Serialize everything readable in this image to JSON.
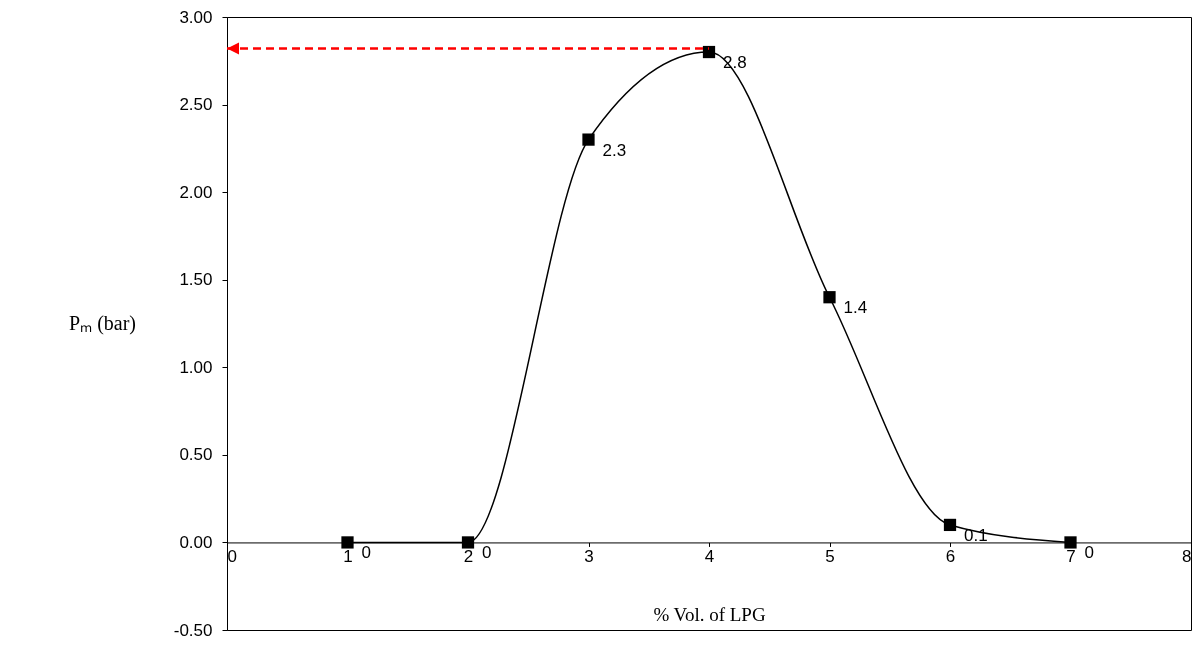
{
  "chart_data": {
    "type": "line",
    "xlabel": "% Vol. of LPG",
    "ylabel": "Pₘ (bar)",
    "x": [
      1,
      2,
      3,
      4,
      5,
      6,
      7
    ],
    "series": [
      {
        "color": "#000000",
        "values": [
          0,
          0,
          2.3,
          2.8,
          1.4,
          0.1,
          0
        ]
      }
    ],
    "xlim": [
      0,
      8
    ],
    "xticks": [
      0,
      1,
      2,
      3,
      4,
      5,
      6,
      7,
      8
    ],
    "ylim": [
      -0.5,
      3
    ],
    "yticks": [
      {
        "value": -0.5,
        "label": "-0.50"
      },
      {
        "value": 0,
        "label": "0.00"
      },
      {
        "value": 0.5,
        "label": "0.50"
      },
      {
        "value": 1,
        "label": "1.00"
      },
      {
        "value": 1.5,
        "label": "1.50"
      },
      {
        "value": 2,
        "label": "2.00"
      },
      {
        "value": 2.5,
        "label": "2.50"
      },
      {
        "value": 3,
        "label": "3.00"
      }
    ],
    "ref_lines": [
      {
        "axis": "y",
        "value": 2.82,
        "color": "#ff0000",
        "line_style": "dashed"
      }
    ],
    "marker": "square",
    "line_style": "solid",
    "data_labels": true,
    "grid": false
  }
}
